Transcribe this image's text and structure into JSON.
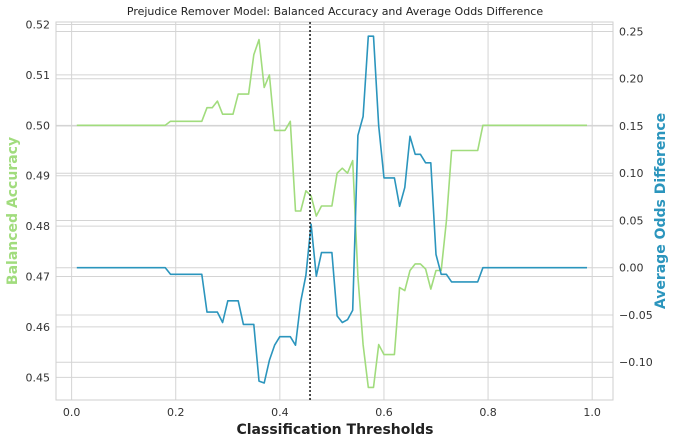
{
  "chart_data": {
    "type": "line",
    "title": "Prejudice Remover Model: Balanced Accuracy and Average Odds Difference",
    "xlabel": "Classification Thresholds",
    "ylabel_left": "Balanced Accuracy",
    "ylabel_right": "Average Odds Difference",
    "xlim": [
      -0.03,
      1.04
    ],
    "ylim_left": [
      0.4455,
      0.5205
    ],
    "ylim_right": [
      -0.14,
      0.26
    ],
    "x_ticks": [
      "0.0",
      "0.2",
      "0.4",
      "0.6",
      "0.8",
      "1.0"
    ],
    "x_tick_values": [
      0.0,
      0.2,
      0.4,
      0.6,
      0.8,
      1.0
    ],
    "y_left_ticks": [
      "0.45",
      "0.46",
      "0.47",
      "0.48",
      "0.49",
      "0.50",
      "0.51",
      "0.52"
    ],
    "y_left_tick_values": [
      0.45,
      0.46,
      0.47,
      0.48,
      0.49,
      0.5,
      0.51,
      0.52
    ],
    "y_right_ticks": [
      "−0.10",
      "−0.05",
      "0.00",
      "0.05",
      "0.10",
      "0.15",
      "0.20",
      "0.25"
    ],
    "y_right_tick_values": [
      -0.1,
      -0.05,
      0.0,
      0.05,
      0.1,
      0.15,
      0.2,
      0.25
    ],
    "grid": true,
    "vertical_line_x": 0.458,
    "colors": {
      "balanced_accuracy": "#a1dc7d",
      "average_odds_difference": "#2b95bd",
      "vertical_line": "#222222"
    },
    "series": [
      {
        "axis": "left",
        "x": [
          0.01,
          0.18,
          0.19,
          0.24,
          0.25,
          0.26,
          0.27,
          0.28,
          0.29,
          0.3,
          0.31,
          0.32,
          0.33,
          0.34,
          0.35,
          0.36,
          0.37,
          0.38,
          0.39,
          0.4,
          0.41,
          0.42,
          0.43,
          0.44,
          0.45,
          0.46,
          0.47,
          0.48,
          0.49,
          0.5,
          0.51,
          0.52,
          0.53,
          0.54,
          0.55,
          0.56,
          0.57,
          0.58,
          0.59,
          0.6,
          0.61,
          0.62,
          0.63,
          0.64,
          0.65,
          0.66,
          0.67,
          0.68,
          0.69,
          0.7,
          0.71,
          0.72,
          0.73,
          0.77,
          0.78,
          0.79,
          0.99
        ],
        "y": [
          0.5,
          0.5,
          0.5008,
          0.5008,
          0.5008,
          0.5035,
          0.5035,
          0.5048,
          0.5022,
          0.5022,
          0.5022,
          0.5062,
          0.5062,
          0.5062,
          0.514,
          0.517,
          0.5075,
          0.51,
          0.499,
          0.499,
          0.499,
          0.5008,
          0.483,
          0.483,
          0.487,
          0.486,
          0.482,
          0.484,
          0.484,
          0.484,
          0.4905,
          0.4915,
          0.4905,
          0.493,
          0.47,
          0.4565,
          0.448,
          0.448,
          0.4565,
          0.4545,
          0.4545,
          0.4545,
          0.4678,
          0.4672,
          0.4712,
          0.4725,
          0.4725,
          0.4715,
          0.4675,
          0.4712,
          0.4712,
          0.481,
          0.495,
          0.495,
          0.495,
          0.5,
          0.5
        ]
      },
      {
        "axis": "right",
        "x": [
          0.01,
          0.18,
          0.19,
          0.24,
          0.25,
          0.26,
          0.27,
          0.28,
          0.29,
          0.3,
          0.31,
          0.32,
          0.33,
          0.34,
          0.35,
          0.36,
          0.37,
          0.38,
          0.39,
          0.4,
          0.41,
          0.42,
          0.43,
          0.44,
          0.45,
          0.46,
          0.47,
          0.48,
          0.49,
          0.5,
          0.51,
          0.52,
          0.53,
          0.54,
          0.55,
          0.56,
          0.57,
          0.58,
          0.59,
          0.6,
          0.61,
          0.62,
          0.63,
          0.64,
          0.65,
          0.66,
          0.67,
          0.68,
          0.69,
          0.7,
          0.71,
          0.72,
          0.73,
          0.77,
          0.78,
          0.79,
          0.99
        ],
        "y": [
          0.0,
          0.0,
          -0.007,
          -0.007,
          -0.007,
          -0.047,
          -0.047,
          -0.047,
          -0.058,
          -0.035,
          -0.035,
          -0.035,
          -0.06,
          -0.06,
          -0.06,
          -0.12,
          -0.122,
          -0.098,
          -0.082,
          -0.073,
          -0.073,
          -0.073,
          -0.082,
          -0.036,
          -0.008,
          0.046,
          -0.009,
          0.016,
          0.016,
          0.016,
          -0.051,
          -0.058,
          -0.055,
          -0.045,
          0.14,
          0.16,
          0.245,
          0.245,
          0.15,
          0.095,
          0.095,
          0.095,
          0.065,
          0.085,
          0.139,
          0.12,
          0.12,
          0.111,
          0.111,
          0.014,
          -0.007,
          -0.007,
          -0.015,
          -0.015,
          -0.015,
          0.0,
          0.0
        ]
      }
    ]
  }
}
